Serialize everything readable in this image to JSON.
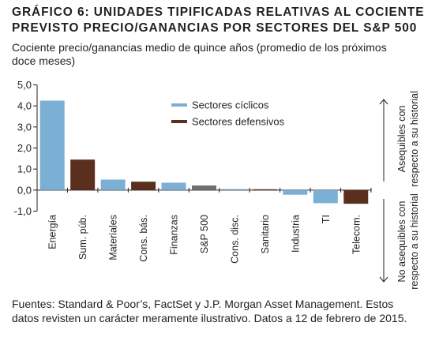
{
  "header": {
    "title_line1": "GRÁFICO 6: UNIDADES TIPIFICADAS RELATIVAS AL COCIENTE",
    "title_line2": "PREVISTO PRECIO/GANANCIAS POR SECTORES DEL S&P 500",
    "subtitle_line1": "Cociente precio/ganancias medio de quince años (promedio de los próximos",
    "subtitle_line2": "doce meses)"
  },
  "chart_data": {
    "type": "bar",
    "categories": [
      "Energía",
      "Sum. púb.",
      "Materiales",
      "Cons. bás.",
      "Finanzas",
      "S&P 500",
      "Cons. disc.",
      "Sanitario",
      "Industria",
      "TI",
      "Telecom."
    ],
    "values": [
      4.25,
      1.45,
      0.5,
      0.4,
      0.35,
      0.22,
      0.05,
      0.04,
      -0.22,
      -0.62,
      -0.65
    ],
    "bar_groups": [
      "ciclico",
      "defensivo",
      "ciclico",
      "defensivo",
      "ciclico",
      "indice",
      "ciclico",
      "defensivo",
      "ciclico",
      "ciclico",
      "defensivo"
    ],
    "ylim": [
      -1,
      5
    ],
    "yticks": [
      "5,0",
      "4,0",
      "3,0",
      "2,0",
      "1,0",
      "0,0",
      "-1,0"
    ],
    "ytick_values": [
      5,
      4,
      3,
      2,
      1,
      0,
      -1
    ],
    "legend": [
      {
        "name": "Sectores cíclicos",
        "color": "#7bafd4"
      },
      {
        "name": "Sectores defensivos",
        "color": "#5b2f1e"
      }
    ],
    "legend_placement": "top-center",
    "side_annotations": {
      "upper": [
        "Asequibles con",
        "respecto a su historial"
      ],
      "lower": [
        "No asequibles con",
        "respecto a su historial"
      ]
    },
    "grid": false
  },
  "colors": {
    "ciclico": "#7bafd4",
    "defensivo": "#5b2f1e",
    "indice": "#6f6f6f",
    "axis": "#231f20"
  },
  "footer": {
    "line1": "Fuentes: Standard & Poor’s, FactSet y J.P. Morgan Asset Management. Estos",
    "line2": "datos revisten un carácter meramente ilustrativo. Datos a 12 de febrero de 2015."
  }
}
